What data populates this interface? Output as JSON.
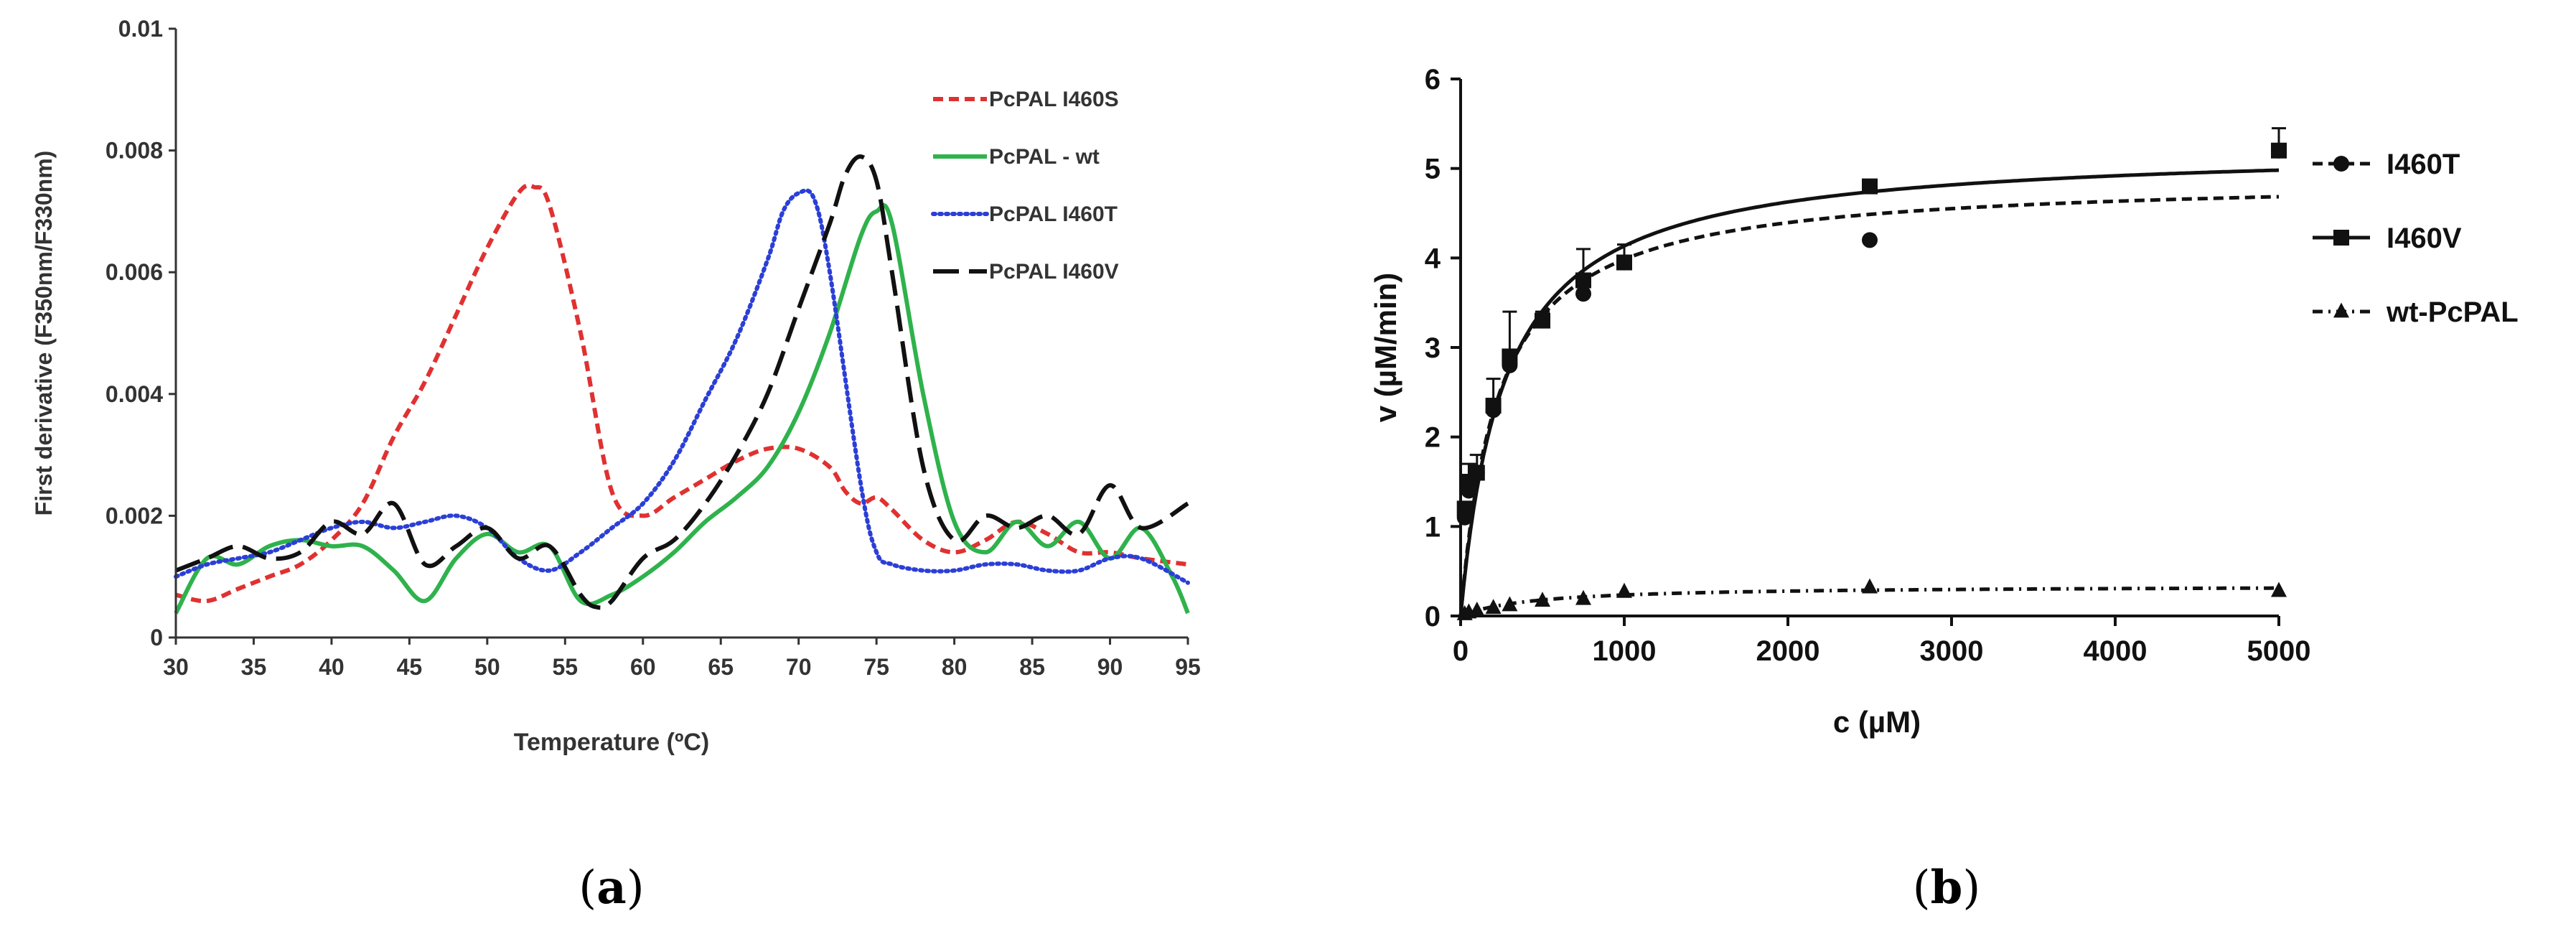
{
  "chart_data": [
    {
      "type": "line",
      "panel": "a",
      "xlabel": "Temperature (ºC)",
      "ylabel": "First derivative  (F350nm/F330nm)",
      "xlim": [
        30,
        95
      ],
      "ylim": [
        0,
        0.01
      ],
      "x_ticks": [
        "30",
        "35",
        "40",
        "45",
        "50",
        "55",
        "60",
        "65",
        "70",
        "75",
        "80",
        "85",
        "90",
        "95"
      ],
      "y_ticks": [
        "0",
        "0.002",
        "0.004",
        "0.006",
        "0.008",
        "0.01"
      ],
      "legend_position": "top-right",
      "series": [
        {
          "name": "PcPAL I460S",
          "color": "#e03131",
          "dash": "dashed",
          "x": [
            30,
            32,
            34,
            36,
            38,
            40,
            42,
            44,
            46,
            48,
            50,
            52,
            53,
            54,
            56,
            58,
            60,
            62,
            64,
            66,
            68,
            70,
            72,
            73,
            74,
            75,
            76,
            78,
            80,
            82,
            84,
            86,
            88,
            90,
            92,
            95
          ],
          "y": [
            0.0007,
            0.0006,
            0.0008,
            0.001,
            0.0012,
            0.0016,
            0.0022,
            0.0033,
            0.0042,
            0.0053,
            0.0064,
            0.0073,
            0.0074,
            0.0071,
            0.005,
            0.0024,
            0.002,
            0.0023,
            0.0026,
            0.0029,
            0.0031,
            0.0031,
            0.0028,
            0.0024,
            0.0022,
            0.0023,
            0.0021,
            0.0016,
            0.0014,
            0.0016,
            0.0019,
            0.0017,
            0.0014,
            0.0014,
            0.0013,
            0.0012
          ]
        },
        {
          "name": "PcPAL - wt",
          "color": "#2fb24c",
          "dash": "solid",
          "x": [
            30,
            32,
            34,
            36,
            38,
            40,
            42,
            44,
            46,
            48,
            50,
            52,
            54,
            56,
            58,
            60,
            62,
            64,
            66,
            68,
            70,
            72,
            74,
            75,
            76,
            78,
            80,
            82,
            84,
            86,
            88,
            90,
            92,
            94,
            95
          ],
          "y": [
            0.0004,
            0.0013,
            0.0012,
            0.0015,
            0.0016,
            0.0015,
            0.0015,
            0.0011,
            0.0006,
            0.0013,
            0.0017,
            0.0014,
            0.0015,
            0.0006,
            0.0007,
            0.001,
            0.0014,
            0.0019,
            0.0023,
            0.0028,
            0.0037,
            0.005,
            0.0066,
            0.007,
            0.0068,
            0.004,
            0.0019,
            0.0014,
            0.0019,
            0.0015,
            0.0019,
            0.0013,
            0.0018,
            0.001,
            0.0004
          ]
        },
        {
          "name": "PcPAL I460T",
          "color": "#2b3fd6",
          "dash": "dotted",
          "x": [
            30,
            32,
            34,
            36,
            38,
            40,
            42,
            44,
            46,
            48,
            50,
            52,
            54,
            56,
            58,
            60,
            62,
            64,
            66,
            68,
            69,
            70,
            71,
            72,
            74,
            75,
            76,
            78,
            80,
            82,
            84,
            86,
            88,
            90,
            92,
            95
          ],
          "y": [
            0.001,
            0.0012,
            0.0013,
            0.0014,
            0.0016,
            0.0018,
            0.0019,
            0.0018,
            0.0019,
            0.002,
            0.0018,
            0.0013,
            0.0011,
            0.0014,
            0.0018,
            0.0022,
            0.0029,
            0.0039,
            0.0049,
            0.0062,
            0.007,
            0.0073,
            0.0072,
            0.006,
            0.0025,
            0.0014,
            0.0012,
            0.0011,
            0.0011,
            0.0012,
            0.0012,
            0.0011,
            0.0011,
            0.0013,
            0.0013,
            0.0009
          ]
        },
        {
          "name": "PcPAL I460V",
          "color": "#111111",
          "dash": "long-dash",
          "x": [
            30,
            32,
            34,
            36,
            38,
            40,
            42,
            44,
            46,
            48,
            50,
            52,
            54,
            56,
            57,
            58,
            60,
            62,
            64,
            66,
            68,
            70,
            72,
            73,
            74,
            75,
            76,
            78,
            80,
            82,
            84,
            86,
            88,
            90,
            92,
            95
          ],
          "y": [
            0.0011,
            0.0013,
            0.0015,
            0.0013,
            0.0014,
            0.0019,
            0.0017,
            0.0022,
            0.0012,
            0.0015,
            0.0018,
            0.0013,
            0.0015,
            0.0007,
            0.0005,
            0.0006,
            0.0013,
            0.0016,
            0.0022,
            0.003,
            0.004,
            0.0054,
            0.0068,
            0.0076,
            0.0079,
            0.0075,
            0.006,
            0.0028,
            0.0016,
            0.002,
            0.0018,
            0.002,
            0.0017,
            0.0025,
            0.0018,
            0.0022
          ]
        }
      ],
      "panel_label": "(a)",
      "panel_letter": "a"
    },
    {
      "type": "scatter",
      "panel": "b",
      "xlabel": "c (µM)",
      "ylabel": "v (µM/min)",
      "xlim": [
        0,
        5000
      ],
      "ylim": [
        0,
        6
      ],
      "x_ticks": [
        "0",
        "1000",
        "2000",
        "3000",
        "4000",
        "5000"
      ],
      "y_ticks": [
        "0",
        "1",
        "2",
        "3",
        "4",
        "5",
        "6"
      ],
      "legend_position": "top-right",
      "series": [
        {
          "name": "I460T",
          "marker": "circle",
          "line": "dashed",
          "x": [
            25,
            50,
            100,
            200,
            300,
            500,
            750,
            1000,
            2500,
            5000
          ],
          "y": [
            1.1,
            1.4,
            1.6,
            2.3,
            2.8,
            3.3,
            3.6,
            3.95,
            4.2,
            5.2
          ],
          "fit": {
            "vmax": 4.9,
            "km": 230
          }
        },
        {
          "name": "I460V",
          "marker": "square",
          "line": "solid",
          "x": [
            25,
            50,
            100,
            200,
            300,
            500,
            750,
            1000,
            2500,
            5000
          ],
          "y": [
            1.2,
            1.5,
            1.6,
            2.35,
            2.9,
            3.3,
            3.75,
            3.95,
            4.8,
            5.2
          ],
          "err": [
            0.0,
            0.2,
            0.2,
            0.3,
            0.5,
            0.1,
            0.35,
            0.2,
            0.0,
            0.25
          ],
          "fit": {
            "vmax": 5.25,
            "km": 270
          }
        },
        {
          "name": "wt-PcPAL",
          "marker": "triangle",
          "line": "dash-dot",
          "x": [
            25,
            50,
            100,
            200,
            300,
            500,
            750,
            1000,
            2500,
            5000
          ],
          "y": [
            0.02,
            0.04,
            0.06,
            0.09,
            0.12,
            0.17,
            0.19,
            0.27,
            0.32,
            0.28
          ],
          "fit": {
            "vmax": 0.34,
            "km": 450
          }
        }
      ],
      "panel_label": "(b)",
      "panel_letter": "b"
    }
  ]
}
